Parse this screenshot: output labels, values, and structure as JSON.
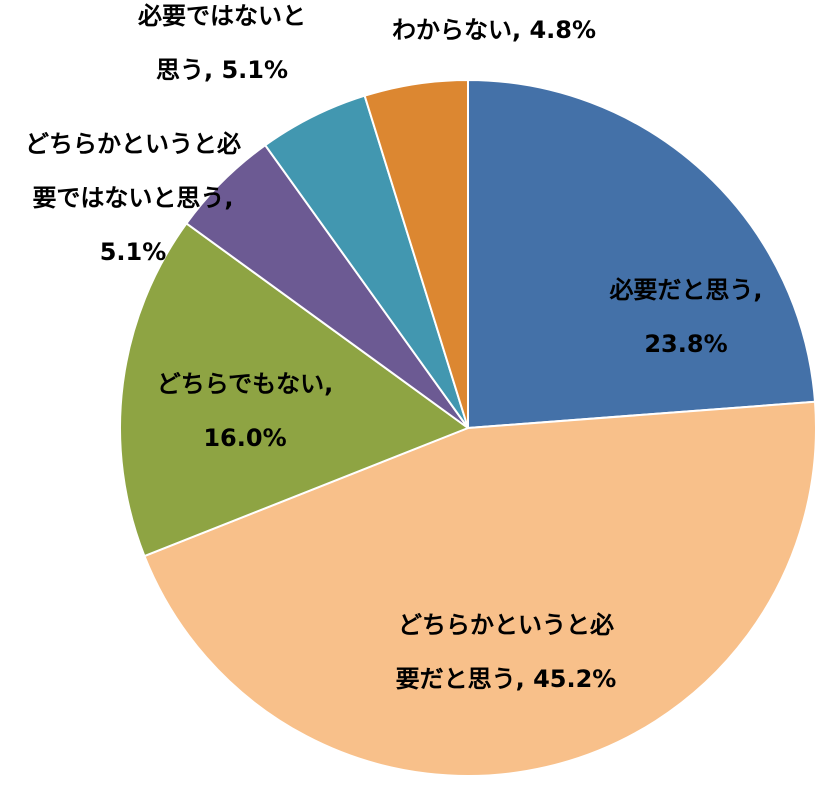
{
  "chart_data": {
    "type": "pie",
    "title": "",
    "start_angle_deg": 0,
    "direction": "clockwise",
    "colors": {
      "slice_border": "#ffffff",
      "label_text": "#000000"
    },
    "slices": [
      {
        "label_lines": [
          "必要だと思う,",
          "23.8%"
        ],
        "category": "必要だと思う",
        "value": 23.8,
        "color": "#4471a8"
      },
      {
        "label_lines": [
          "どちらかというと必",
          "要だと思う, 45.2%"
        ],
        "category": "どちらかというと必要だと思う",
        "value": 45.2,
        "color": "#f8c08a"
      },
      {
        "label_lines": [
          "どちらでもない,",
          "16.0%"
        ],
        "category": "どちらでもない",
        "value": 16.0,
        "color": "#8ea443"
      },
      {
        "label_lines": [
          "どちらかというと必",
          "要ではないと思う,",
          "5.1%"
        ],
        "category": "どちらかというと必要ではないと思う",
        "value": 5.1,
        "color": "#6c5a93"
      },
      {
        "label_lines": [
          "必要ではないと",
          "思う, 5.1%"
        ],
        "category": "必要ではないと思う",
        "value": 5.1,
        "color": "#4297b0"
      },
      {
        "label_lines": [
          "わからない, 4.8%"
        ],
        "category": "わからない",
        "value": 4.8,
        "color": "#dc8731"
      }
    ]
  }
}
